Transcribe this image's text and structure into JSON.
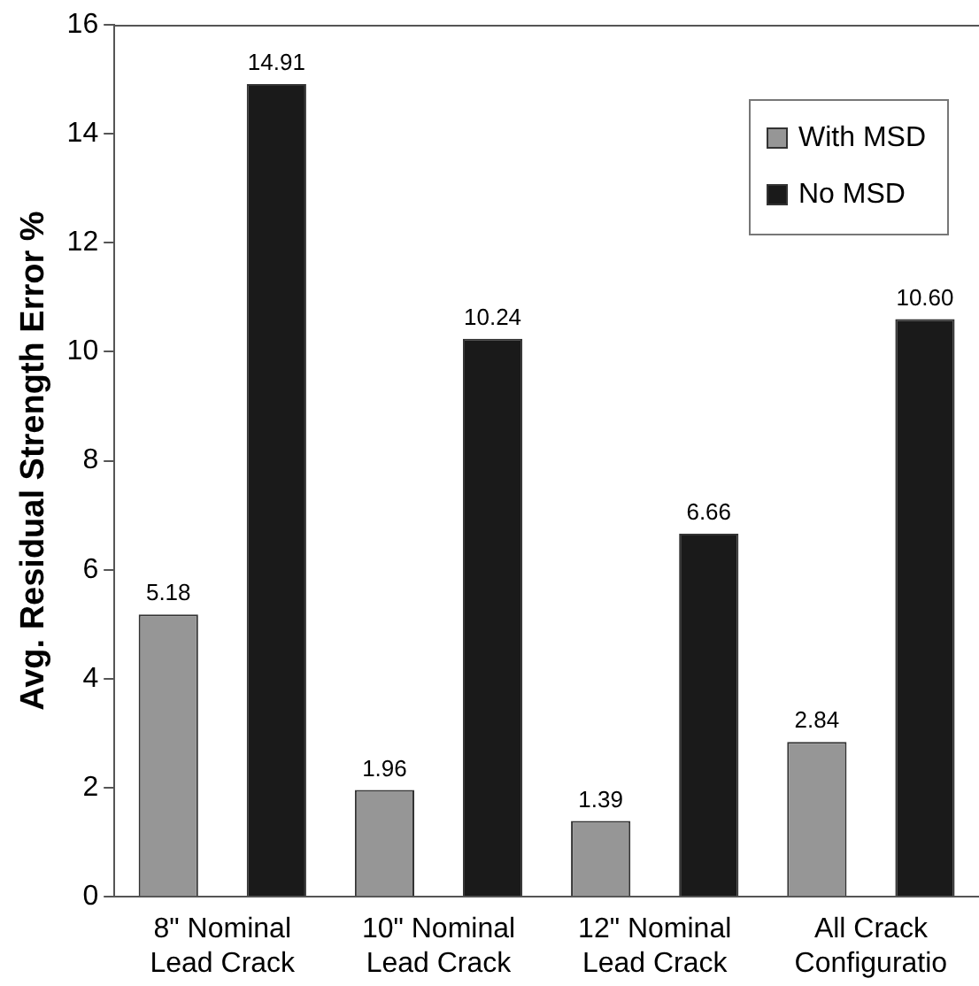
{
  "chart_data": {
    "type": "bar",
    "ylabel": "Avg. Residual Strength Error %",
    "categories": [
      "8\" Nominal\nLead Crack",
      "10\" Nominal\nLead Crack",
      "12\" Nominal\nLead Crack",
      "All Crack\nConfiguratio"
    ],
    "series": [
      {
        "name": "With MSD",
        "color": "#969696",
        "values": [
          5.18,
          1.96,
          1.39,
          2.84
        ],
        "value_labels": [
          "5.18",
          "1.96",
          "1.39",
          "2.84"
        ]
      },
      {
        "name": "No MSD",
        "color": "#1a1a1a",
        "values": [
          14.91,
          10.24,
          6.66,
          10.6
        ],
        "value_labels": [
          "14.91",
          "10.24",
          "6.66",
          "10.60"
        ]
      }
    ],
    "ylim": [
      0,
      16
    ],
    "yticks": [
      0,
      2,
      4,
      6,
      8,
      10,
      12,
      14,
      16
    ],
    "grid": false,
    "legend": "top right"
  }
}
